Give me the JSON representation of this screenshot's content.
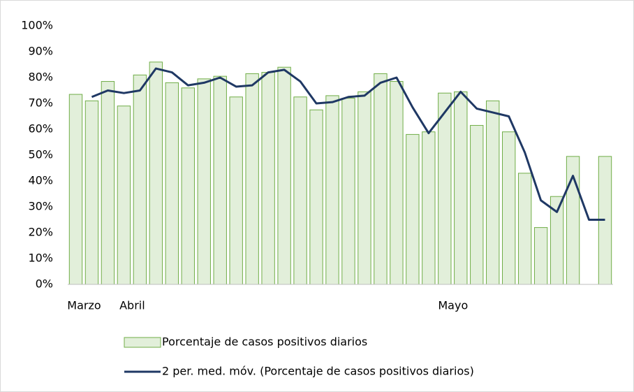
{
  "chart_data": {
    "type": "bar_line",
    "categories": [
      "Marzo",
      null,
      null,
      "Abril",
      null,
      null,
      null,
      null,
      null,
      null,
      null,
      null,
      null,
      null,
      null,
      null,
      null,
      null,
      null,
      null,
      null,
      null,
      null,
      "Mayo",
      null,
      null,
      null,
      null,
      null,
      null,
      null,
      null,
      null,
      null
    ],
    "series": [
      {
        "name": "Porcentaje de casos positivos diarios",
        "type": "bar",
        "color": "#e2efda",
        "edge_color": "#70ad47",
        "values": [
          73.5,
          71,
          78.5,
          69,
          81,
          86,
          78,
          76,
          79.5,
          80.5,
          72.5,
          81.5,
          82,
          84,
          72.5,
          67.5,
          73,
          72,
          74.5,
          81.5,
          78.5,
          58,
          59,
          74,
          74.5,
          61.5,
          71,
          59,
          43,
          22,
          34,
          49.5,
          null,
          49.5
        ]
      },
      {
        "name": "2 per. med. móv. (Porcentaje de casos positivos diarios)",
        "type": "line",
        "color": "#1f3864",
        "values": [
          null,
          72.5,
          75,
          74,
          75,
          83.5,
          82,
          77,
          78,
          80,
          76.5,
          77,
          82,
          83,
          78.5,
          70,
          70.5,
          72.5,
          73,
          78,
          80,
          68.5,
          58.5,
          66.5,
          74.5,
          68,
          66.5,
          65,
          51,
          32.5,
          28,
          42,
          25,
          25
        ]
      }
    ],
    "ylim": [
      0,
      100
    ],
    "yticks": [
      {
        "value": 0,
        "label": "0%"
      },
      {
        "value": 10,
        "label": "10%"
      },
      {
        "value": 20,
        "label": "20%"
      },
      {
        "value": 30,
        "label": "30%"
      },
      {
        "value": 40,
        "label": "40%"
      },
      {
        "value": 50,
        "label": "50%"
      },
      {
        "value": 60,
        "label": "60%"
      },
      {
        "value": 70,
        "label": "70%"
      },
      {
        "value": 80,
        "label": "80%"
      },
      {
        "value": 90,
        "label": "90%"
      },
      {
        "value": 100,
        "label": "100%"
      }
    ],
    "grid": false
  }
}
